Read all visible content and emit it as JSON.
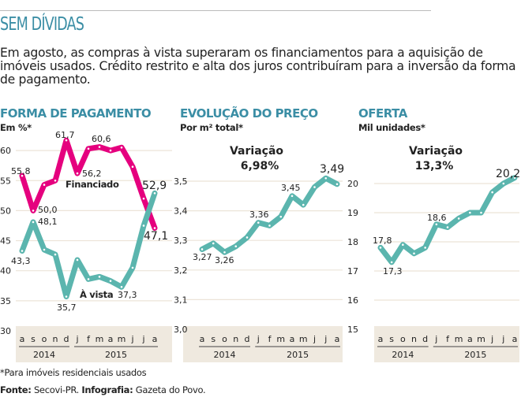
{
  "header": {
    "title": "SEM DÍVIDAS",
    "intro": "Em agosto, as compras à vista superaram os financiamentos para a aquisição de imóveis usados. Crédito restrito e alta dos juros contribuíram para a inversão da forma de pagamento."
  },
  "footer": {
    "note": "*Para imóveis residenciais usados",
    "source_label": "Fonte:",
    "source": "Secovi-PR.",
    "graphic_label": "Infografia:",
    "graphic": "Gazeta do Povo."
  },
  "colors": {
    "financiado": "#e5007e",
    "avista": "#5bb5ae",
    "title": "#3b8ea5",
    "band": "#efe9df"
  },
  "chart_data": [
    {
      "type": "line",
      "title": "FORMA DE PAGAMENTO",
      "ylabel": "Em %*",
      "ylim": [
        30,
        62
      ],
      "yticks": [
        "30",
        "35",
        "40",
        "45",
        "50",
        "55",
        "60"
      ],
      "categories": [
        "a",
        "s",
        "o",
        "n",
        "d",
        "j",
        "f",
        "m",
        "a",
        "m",
        "j",
        "j",
        "a"
      ],
      "years": [
        "2014",
        "2015"
      ],
      "grid": true,
      "series": [
        {
          "name": "Financiado",
          "color": "#e5007e",
          "values": [
            55.8,
            50.0,
            54.3,
            55.0,
            61.7,
            56.2,
            60.3,
            60.6,
            60.0,
            60.5,
            57.3,
            52.0,
            47.1
          ],
          "labels": {
            "l0": "55,8",
            "l1": "50,0",
            "l4": "61,7",
            "l5": "56,2",
            "l7": "60,6",
            "l12": "47,1"
          }
        },
        {
          "name": "À vista",
          "color": "#5bb5ae",
          "values": [
            43.3,
            48.1,
            43.5,
            42.7,
            35.7,
            41.8,
            38.6,
            39.0,
            38.3,
            37.3,
            40.5,
            47.5,
            52.9
          ],
          "labels": {
            "l0": "43,3",
            "l1": "48,1",
            "l4": "35,7",
            "l9": "37,3",
            "l12": "52,9"
          }
        }
      ]
    },
    {
      "type": "line",
      "title": "EVOLUÇÃO DO PREÇO",
      "ylabel": "Por m² total*",
      "ylim": [
        3.0,
        3.55
      ],
      "yticks": [
        "3,0",
        "3,1",
        "3,2",
        "3,3",
        "3,4",
        "3,5"
      ],
      "categories": [
        "a",
        "s",
        "o",
        "n",
        "d",
        "j",
        "f",
        "m",
        "a",
        "m",
        "j",
        "j",
        "a"
      ],
      "years": [
        "2014",
        "2015"
      ],
      "grid": true,
      "annotation": {
        "label": "Variação",
        "value": "6,98%"
      },
      "series": [
        {
          "color": "#5bb5ae",
          "values": [
            3.27,
            3.29,
            3.26,
            3.28,
            3.31,
            3.36,
            3.35,
            3.38,
            3.45,
            3.42,
            3.48,
            3.51,
            3.49
          ],
          "labels": {
            "l0": "3,27",
            "l2": "3,26",
            "l5": "3,36",
            "l8": "3,45",
            "l12": "3,49"
          }
        }
      ]
    },
    {
      "type": "line",
      "title": "OFERTA",
      "ylabel": "Mil unidades*",
      "ylim": [
        15,
        20.5
      ],
      "yticks": [
        "15",
        "16",
        "17",
        "18",
        "19",
        "20"
      ],
      "categories": [
        "a",
        "s",
        "o",
        "n",
        "d",
        "j",
        "f",
        "m",
        "a",
        "m",
        "j",
        "j",
        "a"
      ],
      "years": [
        "2014",
        "2015"
      ],
      "grid": true,
      "annotation": {
        "label": "Variação",
        "value": "13,3%"
      },
      "series": [
        {
          "color": "#5bb5ae",
          "values": [
            17.8,
            17.3,
            17.9,
            17.6,
            17.8,
            18.6,
            18.5,
            18.8,
            19.0,
            19.0,
            19.7,
            20.0,
            20.2
          ],
          "labels": {
            "l0": "17,8",
            "l1": "17,3",
            "l5": "18,6",
            "l12": "20,2"
          }
        }
      ]
    }
  ]
}
